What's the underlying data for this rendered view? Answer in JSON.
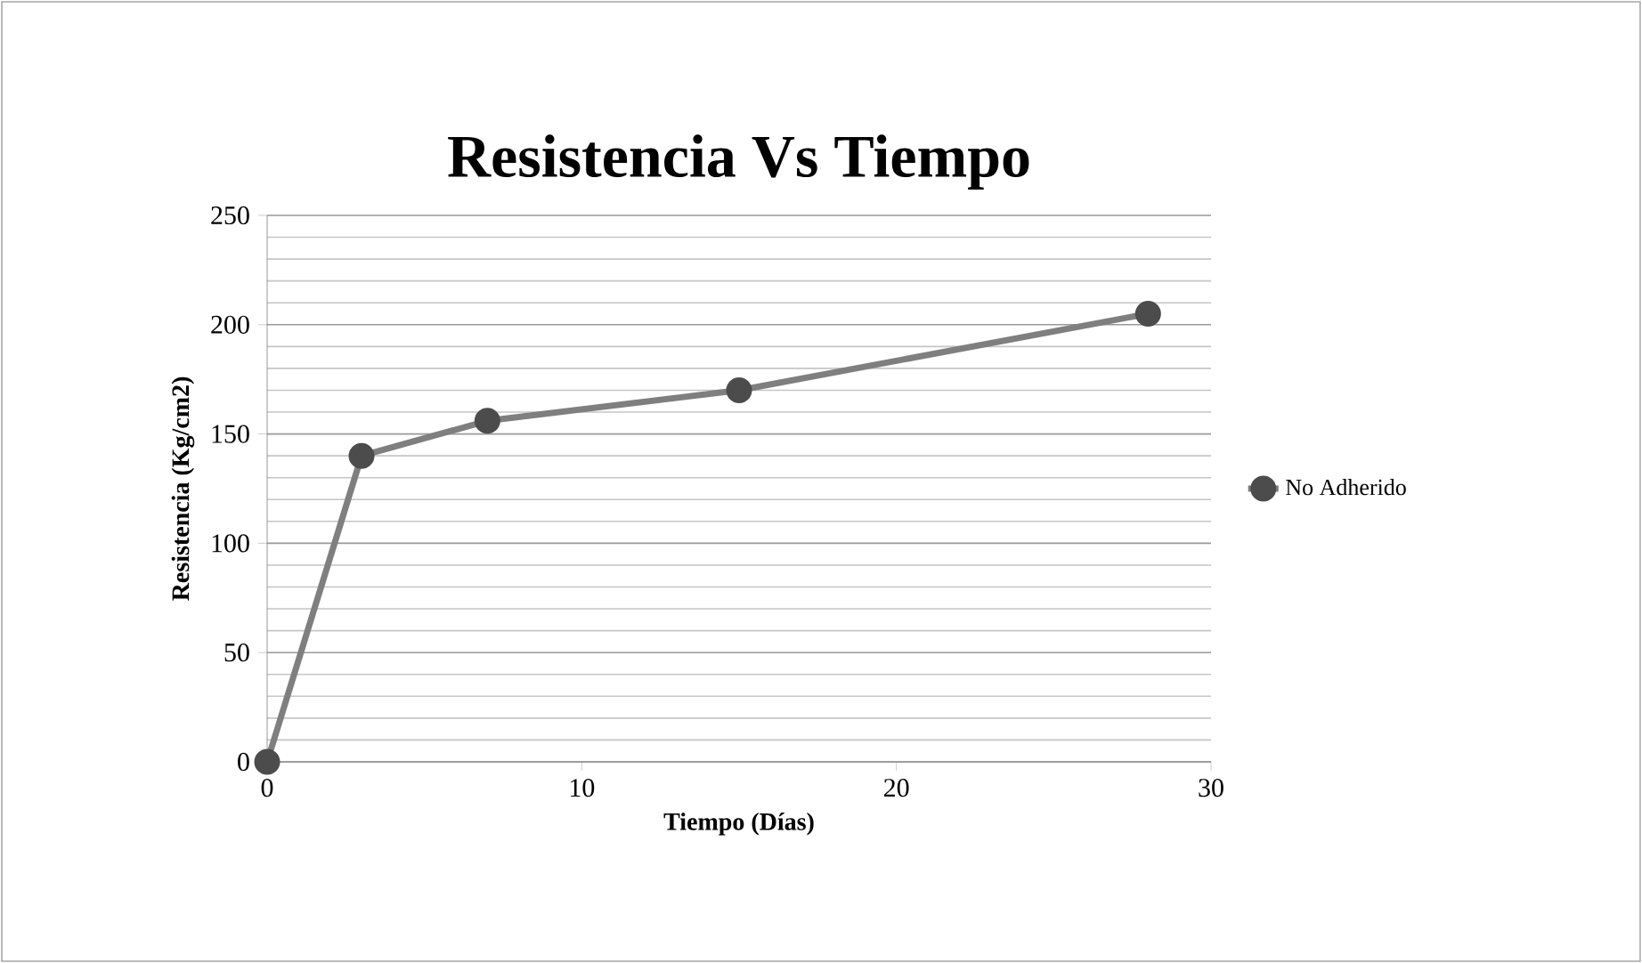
{
  "chart_data": {
    "type": "line",
    "title": "Resistencia Vs Tiempo",
    "xlabel": "Tiempo (Días)",
    "ylabel": "Resistencia (Kg/cm2)",
    "x": [
      0,
      3,
      7,
      15,
      28
    ],
    "series": [
      {
        "name": "No Adherido",
        "color": "#7f7f7f",
        "values": [
          0,
          140,
          156,
          170,
          205
        ]
      }
    ],
    "xlim": [
      0,
      30
    ],
    "xticks": [
      0,
      10,
      20,
      30
    ],
    "ylim": [
      0,
      250
    ],
    "yticks": [
      0,
      50,
      100,
      150,
      200,
      250
    ],
    "grid": "y",
    "legend": "right",
    "marker": "circle",
    "line_style": "solid"
  }
}
